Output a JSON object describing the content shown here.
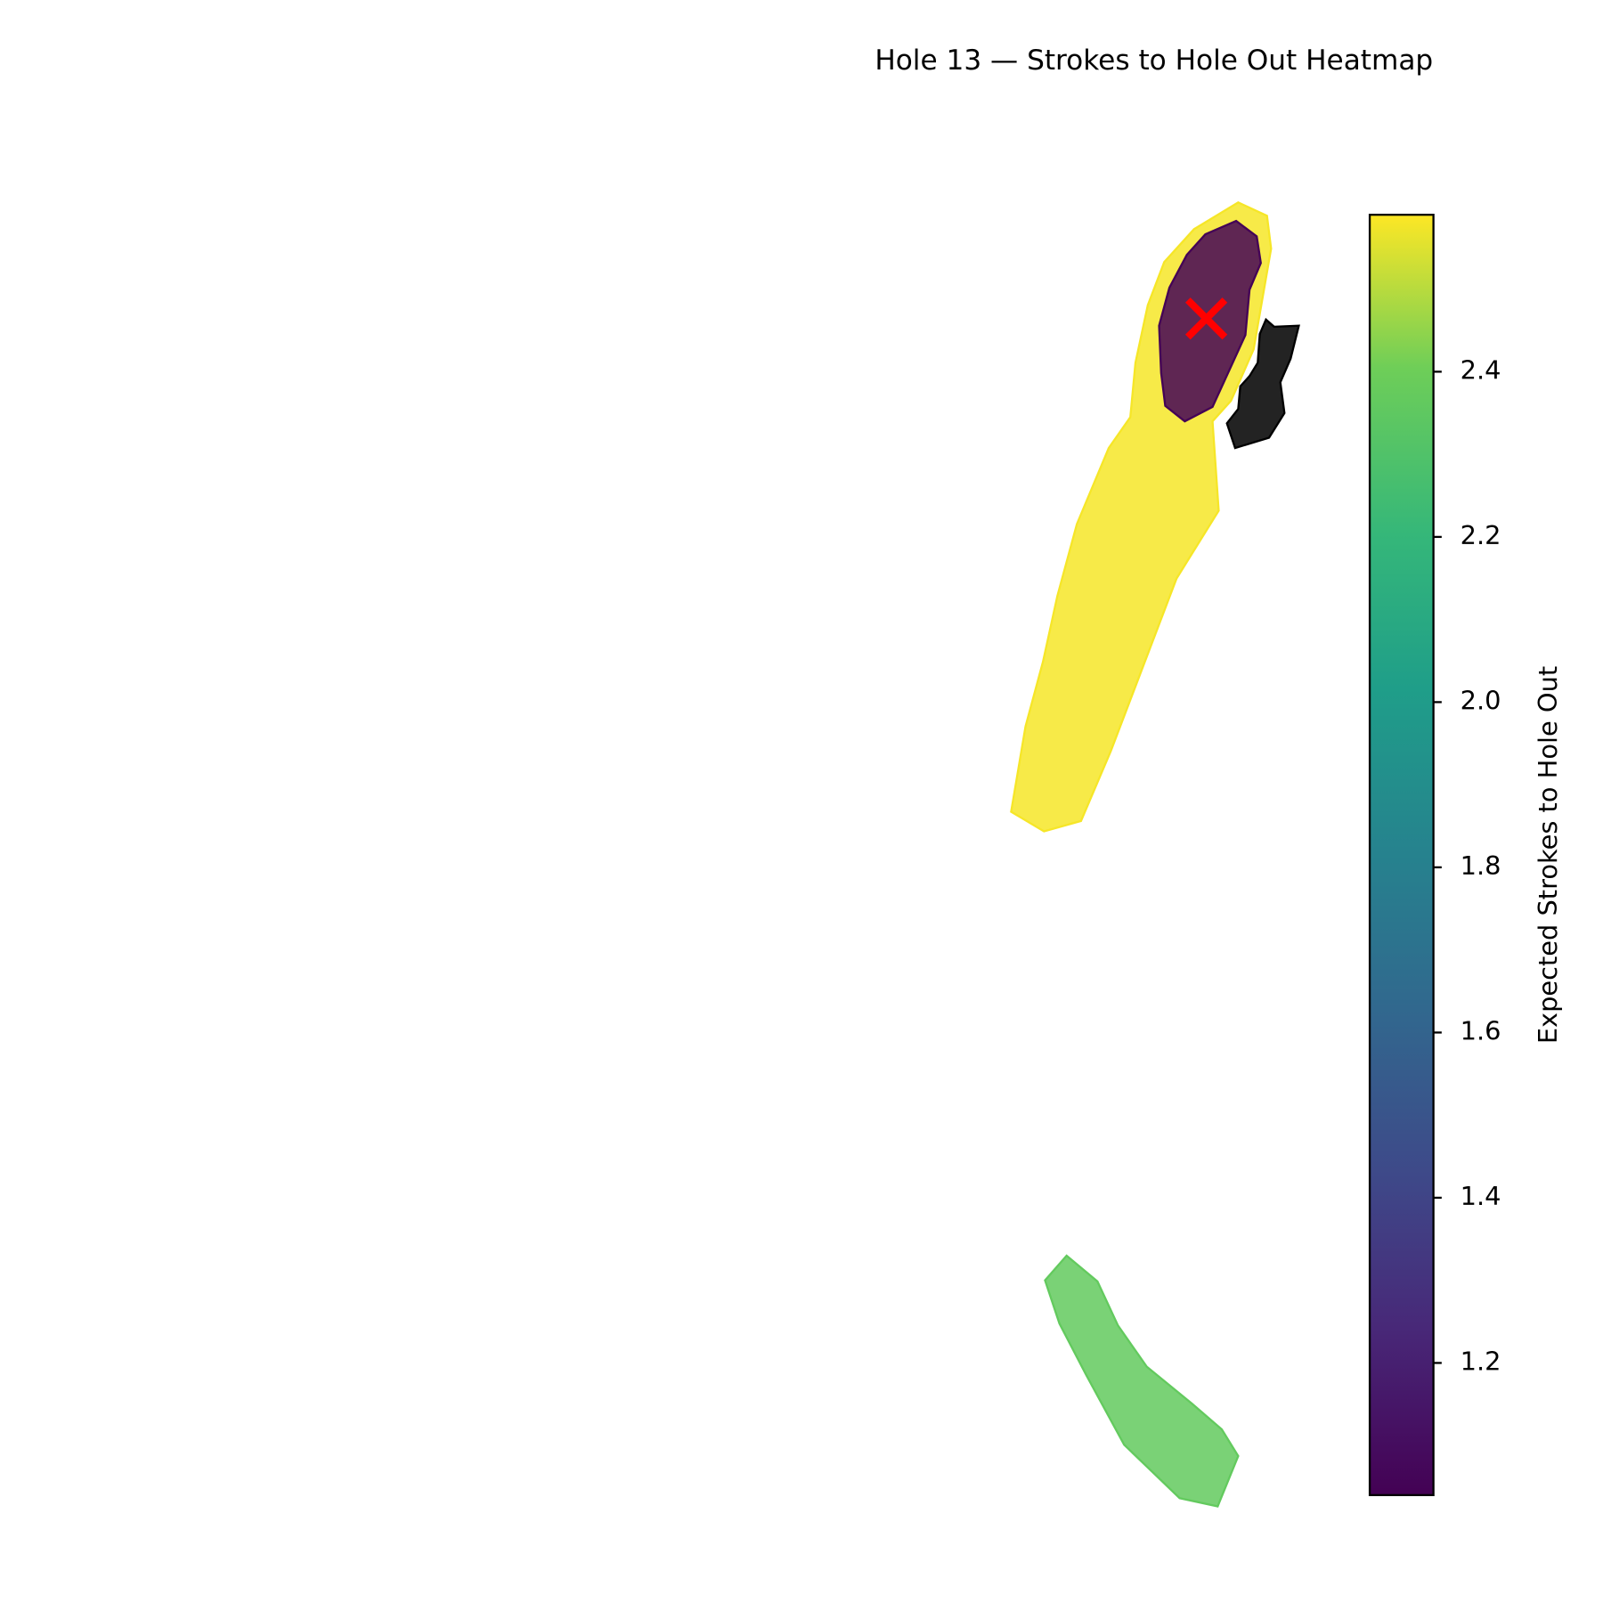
{
  "chart_data": {
    "type": "region-heatmap",
    "title": "Hole 13 — Strokes to Hole Out Heatmap",
    "regions": {
      "values": [
        2.58,
        1.05,
        2.36
      ]
    },
    "colorbar": {
      "label": "Expected Strokes to Hole Out",
      "colormap": "viridis",
      "lim": [
        1.04,
        2.59
      ],
      "ticks": [
        1.2,
        1.4,
        1.6,
        1.8,
        {
          "value": 2,
          "label": "2.0"
        },
        2.2,
        2.4
      ]
    }
  }
}
